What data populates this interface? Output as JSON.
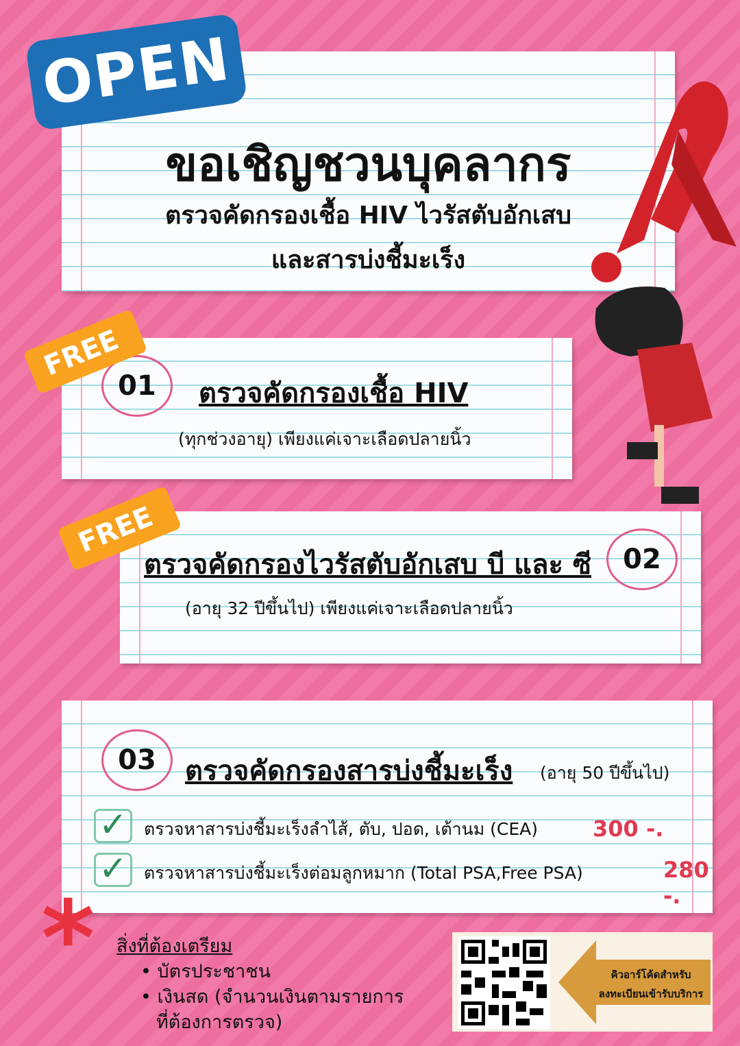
{
  "badge_open": "OPEN",
  "header": {
    "title": "ขอเชิญชวนบุคลากร",
    "subtitle_line1": "ตรวจคัดกรองเชื้อ HIV  ไวรัสตับอักเสบ",
    "subtitle_line2": "และสารบ่งชี้มะเร็ง"
  },
  "free_label": "FREE",
  "items": [
    {
      "number": "01",
      "title": "ตรวจคัดกรองเชื้อ HIV",
      "desc": "(ทุกช่วงอายุ) เพียงแค่เจาะเลือดปลายนิ้ว"
    },
    {
      "number": "02",
      "title": "ตรวจคัดกรองไวรัสตับอักเสบ บี และ ซี",
      "desc": "(อายุ 32 ปีขึ้นไป) เพียงแค่เจาะเลือดปลายนิ้ว"
    },
    {
      "number": "03",
      "title": "ตรวจคัดกรองสารบ่งชี้มะเร็ง",
      "age": "(อายุ 50 ปีขึ้นไป)",
      "tests": [
        {
          "label": "ตรวจหาสารบ่งชี้มะเร็งลำไส้, ตับ, ปอด, เต้านม (CEA)",
          "price": "300 -."
        },
        {
          "label": "ตรวจหาสารบ่งชี้มะเร็งต่อมลูกหมาก (Total PSA,Free PSA)",
          "price": "280 -."
        }
      ]
    }
  ],
  "prepare": {
    "title": "สิ่งที่ต้องเตรียม",
    "items": [
      "บัตรประชาชน",
      "เงินสด (จำนวนเงินตามรายการ",
      "ที่ต้องการตรวจ)"
    ]
  },
  "qr": {
    "label_line1": "คิวอาร์โค้ดสำหรับ",
    "label_line2": "ลงทะเบียนเข้ารับบริการ"
  },
  "colors": {
    "background": "#f27aa8",
    "open_badge": "#1d6fb6",
    "free_tag": "#f9a21f",
    "price": "#e03a52",
    "ribbon": "#d2232a"
  }
}
